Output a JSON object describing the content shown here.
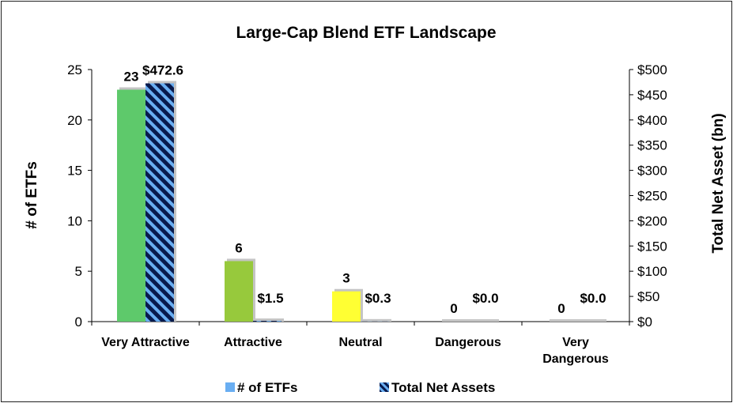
{
  "chart_data": {
    "type": "bar",
    "title": "Large-Cap Blend ETF Landscape",
    "categories": [
      [
        "Very Attractive"
      ],
      [
        "Attractive"
      ],
      [
        "Neutral"
      ],
      [
        "Dangerous"
      ],
      [
        "Very",
        "Dangerous"
      ]
    ],
    "ylabel_left": "# of ETFs",
    "ylabel_right": "Total Net Asset (bn)",
    "ylim_left": [
      0,
      25
    ],
    "yticks_left": [
      "0",
      "5",
      "10",
      "15",
      "20",
      "25"
    ],
    "ylim_right": [
      0,
      500
    ],
    "yticks_right": [
      "$0",
      "$50",
      "$100",
      "$150",
      "$200",
      "$250",
      "$300",
      "$350",
      "$400",
      "$450",
      "$500"
    ],
    "series": [
      {
        "name": "# of ETFs",
        "axis": "left",
        "values": [
          23,
          6,
          3,
          0,
          0
        ],
        "labels": [
          "23",
          "6",
          "3",
          "0",
          "0"
        ],
        "colors": [
          "#5ec96b",
          "#97c93c",
          "#ffff33",
          "#ffffff",
          "#ffffff"
        ]
      },
      {
        "name": "Total Net Assets",
        "axis": "right",
        "values": [
          472.6,
          1.5,
          0.3,
          0.0,
          0.0
        ],
        "labels": [
          "$472.6",
          "$1.5",
          "$0.3",
          "$0.0",
          "$0.0"
        ],
        "pattern": "navy and light-blue diagonal stripes"
      }
    ],
    "legend": {
      "placement": "bottom",
      "items": [
        "# of ETFs",
        "Total Net Assets"
      ]
    },
    "grid": false
  }
}
